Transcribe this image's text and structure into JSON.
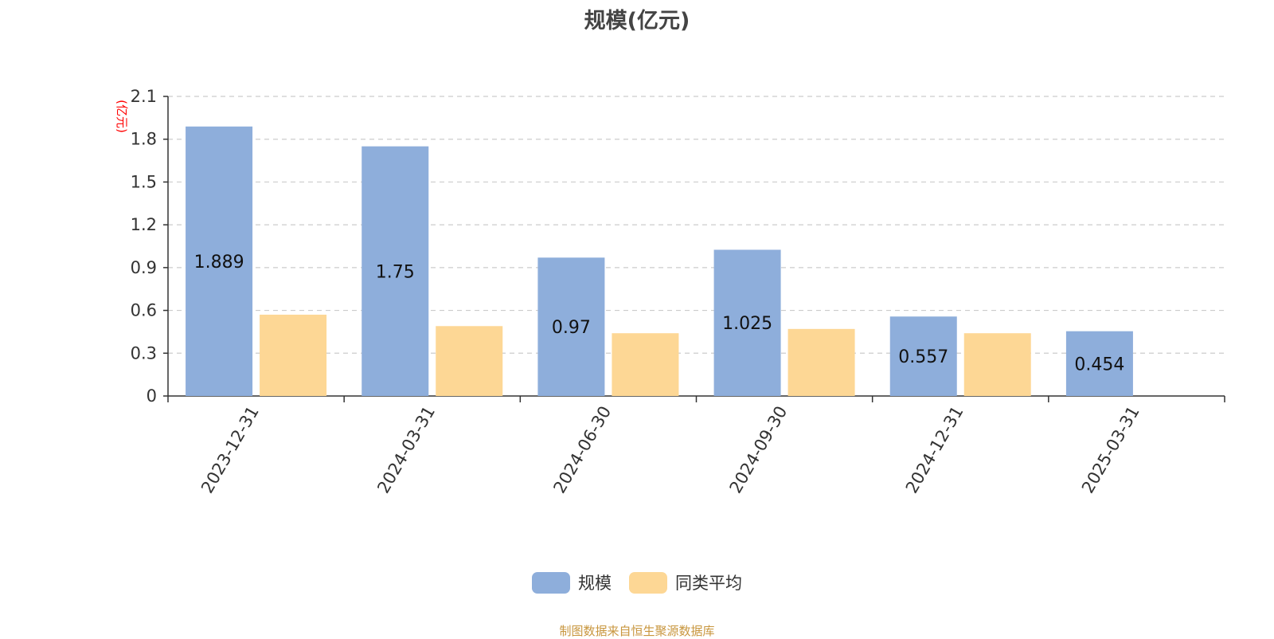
{
  "title": "规模(亿元)",
  "source": "制图数据来自恒生聚源数据库",
  "colors": {
    "primary": "#8EAEDB",
    "secondary": "#FDD795",
    "axis": "#333333",
    "grid": "#CCCCCC",
    "unit": "#FF0000",
    "source": "#C8963E",
    "title": "#444444"
  },
  "chart_data": {
    "type": "bar",
    "title": "规模(亿元)",
    "y_unit_label": "(亿元)",
    "categories": [
      "2023-12-31",
      "2024-03-31",
      "2024-06-30",
      "2024-09-30",
      "2024-12-31",
      "2025-03-31"
    ],
    "series": [
      {
        "name": "规模",
        "values": [
          1.889,
          1.75,
          0.97,
          1.025,
          0.557,
          0.454
        ],
        "data_labels": [
          "1.889",
          "1.75",
          "0.97",
          "1.025",
          "0.557",
          "0.454"
        ]
      },
      {
        "name": "同类平均",
        "values": [
          0.57,
          0.49,
          0.44,
          0.47,
          0.44,
          null
        ]
      }
    ],
    "ylim": [
      0,
      2.1
    ],
    "yticks": [
      "0",
      "0.3",
      "0.6",
      "0.9",
      "1.2",
      "1.5",
      "1.8",
      "2.1"
    ],
    "grid": "horizontal-dashed",
    "legend_position": "bottom-center"
  }
}
